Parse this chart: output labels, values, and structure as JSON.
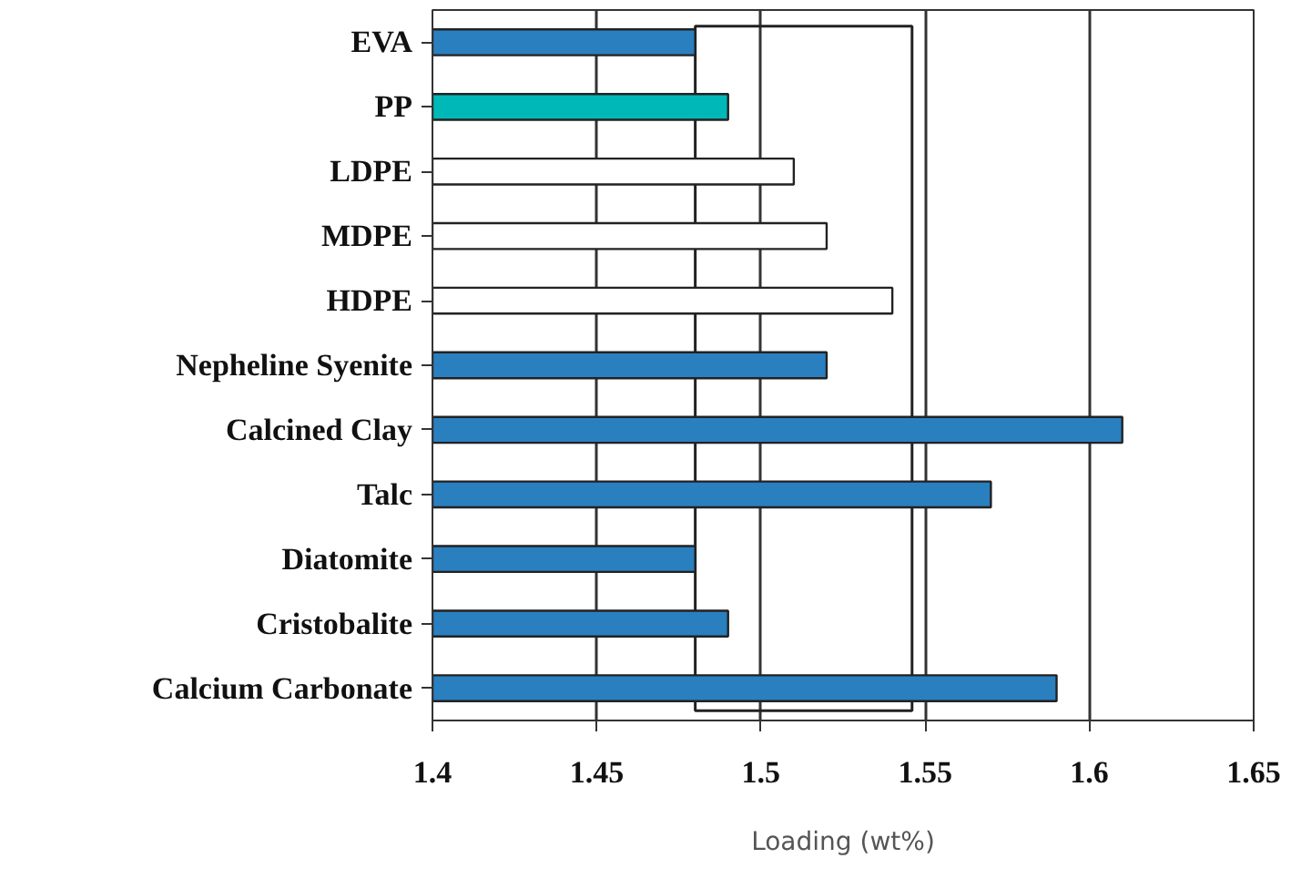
{
  "chart_data": {
    "type": "bar",
    "orientation": "horizontal",
    "xlabel": "Loading (wt%)",
    "categories": [
      "EVA",
      "PP",
      "LDPE",
      "MDPE",
      "HDPE",
      "Nepheline Syenite",
      "Calcined Clay",
      "Talc",
      "Diatomite",
      "Cristobalite",
      "Calcium Carbonate"
    ],
    "values": [
      1.48,
      1.49,
      1.51,
      1.52,
      1.54,
      1.52,
      1.61,
      1.57,
      1.48,
      1.49,
      1.59
    ],
    "colors": [
      "#2a7fbf",
      "#00b8b8",
      "#ffffff",
      "#ffffff",
      "#ffffff",
      "#2a7fbf",
      "#2a7fbf",
      "#2a7fbf",
      "#2a7fbf",
      "#2a7fbf",
      "#2a7fbf"
    ],
    "xlim": [
      1.4,
      1.65
    ],
    "xticks": [
      1.4,
      1.45,
      1.5,
      1.55,
      1.6,
      1.65
    ],
    "bands": [
      {
        "axis": "x",
        "from": 1.48,
        "to": 1.546
      }
    ],
    "grid": "x"
  }
}
